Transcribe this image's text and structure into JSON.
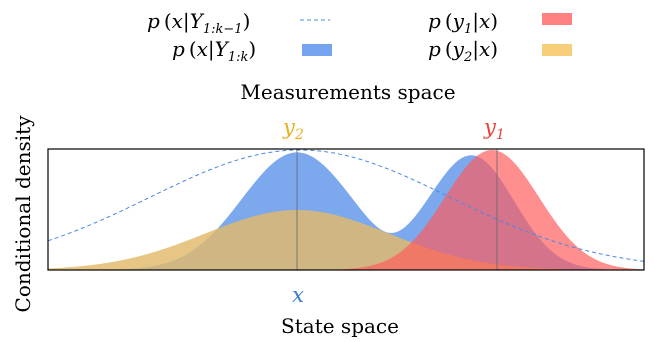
{
  "legend": {
    "items": [
      {
        "pre": "p",
        "open": "(",
        "var": "x",
        "bar": "|",
        "given": "Y",
        "sub": "1:k−1",
        "close": ")",
        "style": "dashed",
        "color": "#4a86e8"
      },
      {
        "pre": "p",
        "open": "(",
        "var": "x",
        "bar": "|",
        "given": "Y",
        "sub": "1:k",
        "close": ")",
        "style": "filled",
        "color": "#4a86e8"
      },
      {
        "pre": "p",
        "open": "(",
        "var": "y",
        "vsub": "1",
        "bar": "|",
        "given": "x",
        "sub": "",
        "close": ")",
        "style": "filled",
        "color": "#ff6b6b"
      },
      {
        "pre": "p",
        "open": "(",
        "var": "y",
        "vsub": "2",
        "bar": "|",
        "given": "x",
        "sub": "",
        "close": ")",
        "style": "filled",
        "color": "#f6c96b"
      }
    ]
  },
  "labels": {
    "measurements_space": "Measurements space",
    "state_space": "State space",
    "conditional_density": "Conditional density",
    "y1": {
      "var": "y",
      "sub": "1"
    },
    "y2": {
      "var": "y",
      "sub": "2"
    },
    "x": "x"
  },
  "colors": {
    "prior": "#4a86e8",
    "posterior": "#4a86e8",
    "likelihood_y1": "#ff6b6b",
    "likelihood_y2": "#f6c96b",
    "y1_label": "#e8403a",
    "y2_label": "#e8b020",
    "x_label": "#3a78d8"
  }
}
